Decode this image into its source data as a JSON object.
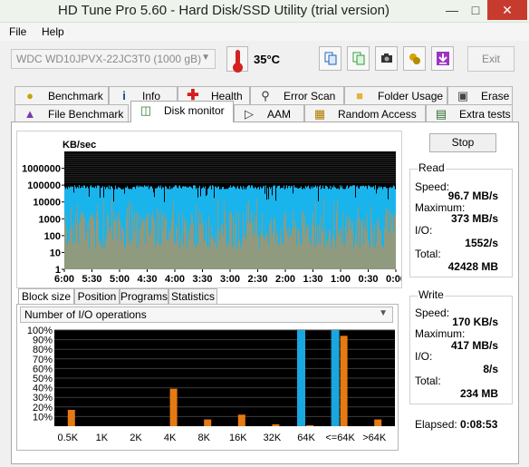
{
  "window": {
    "title": "HD Tune Pro 5.60 - Hard Disk/SSD Utility (trial version)",
    "minimize": "—",
    "maximize": "□",
    "close": "✕"
  },
  "menu": [
    {
      "label": "File"
    },
    {
      "label": "Help"
    }
  ],
  "toolbar": {
    "drive": "WDC WD10JPVX-22JC3T0 (1000 gB)",
    "temperature": "35°C",
    "exit_label": "Exit",
    "buttons": [
      {
        "icon": "copy-info-icon",
        "color": "#1e5fb6"
      },
      {
        "icon": "copy-screenshot-icon",
        "color": "#2f9b3a"
      },
      {
        "icon": "camera-icon",
        "color": "#333333"
      },
      {
        "icon": "options-icon",
        "color": "#d4a400"
      },
      {
        "icon": "download-icon",
        "color": "#a033c4"
      }
    ]
  },
  "tabs_row1": [
    {
      "label": "Benchmark",
      "icon": "benchmark-icon"
    },
    {
      "label": "Info",
      "icon": "info-icon"
    },
    {
      "label": "Health",
      "icon": "health-icon"
    },
    {
      "label": "Error Scan",
      "icon": "error-scan-icon"
    },
    {
      "label": "Folder Usage",
      "icon": "folder-icon"
    },
    {
      "label": "Erase",
      "icon": "erase-icon"
    }
  ],
  "tabs_row2": [
    {
      "label": "File Benchmark",
      "icon": "file-benchmark-icon"
    },
    {
      "label": "Disk monitor",
      "icon": "disk-monitor-icon",
      "active": true
    },
    {
      "label": "AAM",
      "icon": "speaker-icon"
    },
    {
      "label": "Random Access",
      "icon": "random-access-icon"
    },
    {
      "label": "Extra tests",
      "icon": "extra-tests-icon"
    }
  ],
  "monitor": {
    "stop_label": "Stop",
    "read": {
      "title": "Read",
      "speed_label": "Speed:",
      "speed": "96.7 MB/s",
      "max_label": "Maximum:",
      "max": "373 MB/s",
      "io_label": "I/O:",
      "io": "1552/s",
      "total_label": "Total:",
      "total": "42428 MB"
    },
    "write": {
      "title": "Write",
      "speed_label": "Speed:",
      "speed": "170 KB/s",
      "max_label": "Maximum:",
      "max": "417 MB/s",
      "io_label": "I/O:",
      "io": "8/s",
      "total_label": "Total:",
      "total": "234 MB"
    },
    "elapsed_label": "Elapsed:",
    "elapsed": "0:08:53"
  },
  "bottom_tabs": [
    {
      "label": "Block size",
      "active": true
    },
    {
      "label": "Position"
    },
    {
      "label": "Programs"
    },
    {
      "label": "Statistics"
    }
  ],
  "histogram_mode": "Number of I/O operations",
  "chart_data": [
    {
      "type": "area",
      "ylabel": "KB/sec",
      "yscale": "log",
      "ylim": [
        1,
        10000000
      ],
      "y_ticks": [
        "1000000",
        "100000",
        "10000",
        "1000",
        "100",
        "10",
        "1"
      ],
      "x_ticks": [
        "6:00",
        "5:30",
        "5:00",
        "4:30",
        "4:00",
        "3:30",
        "3:00",
        "2:30",
        "2:00",
        "1:30",
        "1:00",
        "0:30",
        "0:00"
      ],
      "series": [
        {
          "name": "Read",
          "color": "#1ab4ec"
        },
        {
          "name": "Write",
          "color": "#8f9a7e"
        }
      ],
      "background": "#000000"
    },
    {
      "type": "bar",
      "y_ticks": [
        "100%",
        "90%",
        "80%",
        "70%",
        "60%",
        "50%",
        "40%",
        "30%",
        "20%",
        "10%"
      ],
      "ylim": [
        0,
        100
      ],
      "categories": [
        "0.5K",
        "1K",
        "2K",
        "4K",
        "8K",
        "16K",
        "32K",
        "64K",
        "<=64K",
        ">64K"
      ],
      "series": [
        {
          "name": "Read",
          "color": "#1aa6df",
          "values": [
            0,
            0,
            0,
            0,
            0,
            0,
            0,
            100,
            100,
            0
          ]
        },
        {
          "name": "Write",
          "color": "#e67a12",
          "values": [
            17,
            0,
            0,
            39,
            7,
            12,
            2,
            1,
            94,
            7
          ]
        }
      ]
    }
  ]
}
